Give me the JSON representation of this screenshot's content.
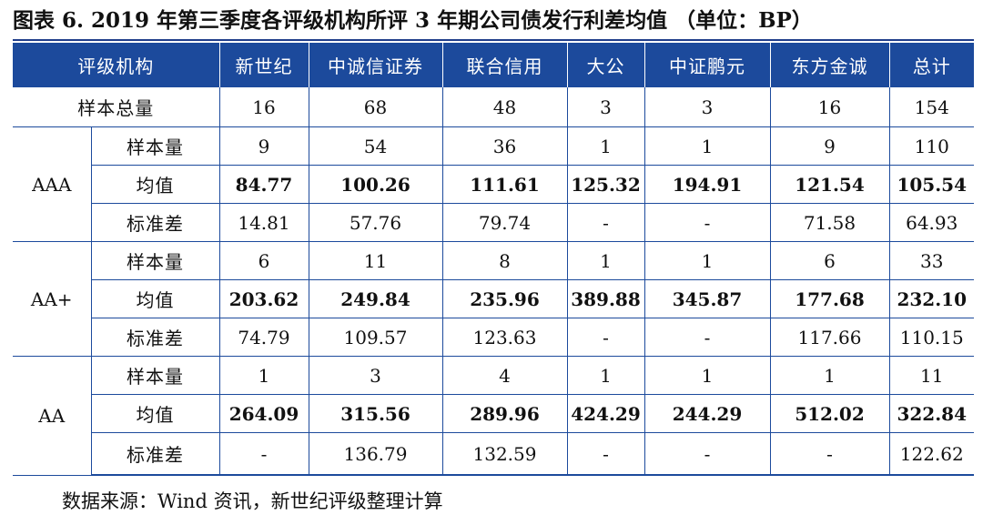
{
  "title": "图表 6.   2019 年第三季度各评级机构所评 3 年期公司债发行利差均值 （单位：BP）",
  "headers": [
    "评级机构",
    "新世纪",
    "中诚信证券",
    "联合信用",
    "大公",
    "中证鹏元",
    "东方金诚",
    "总计"
  ],
  "sample_total": {
    "label": "样本总量",
    "values": [
      "16",
      "68",
      "48",
      "3",
      "3",
      "16",
      "154"
    ]
  },
  "metric_labels": {
    "count": "样本量",
    "mean": "均值",
    "std": "标准差"
  },
  "groups": [
    {
      "rating": "AAA",
      "count": [
        "9",
        "54",
        "36",
        "1",
        "1",
        "9",
        "110"
      ],
      "mean": [
        "84.77",
        "100.26",
        "111.61",
        "125.32",
        "194.91",
        "121.54",
        "105.54"
      ],
      "std": [
        "14.81",
        "57.76",
        "79.74",
        "-",
        "-",
        "71.58",
        "64.93"
      ]
    },
    {
      "rating": "AA+",
      "count": [
        "6",
        "11",
        "8",
        "1",
        "1",
        "6",
        "33"
      ],
      "mean": [
        "203.62",
        "249.84",
        "235.96",
        "389.88",
        "345.87",
        "177.68",
        "232.10"
      ],
      "std": [
        "74.79",
        "109.57",
        "123.63",
        "-",
        "-",
        "117.66",
        "110.15"
      ]
    },
    {
      "rating": "AA",
      "count": [
        "1",
        "3",
        "4",
        "1",
        "1",
        "1",
        "11"
      ],
      "mean": [
        "264.09",
        "315.56",
        "289.96",
        "424.29",
        "244.29",
        "512.02",
        "322.84"
      ],
      "std": [
        "-",
        "136.79",
        "132.59",
        "-",
        "-",
        "-",
        "122.62"
      ]
    }
  ],
  "source": "数据来源：Wind 资讯，新世纪评级整理计算"
}
